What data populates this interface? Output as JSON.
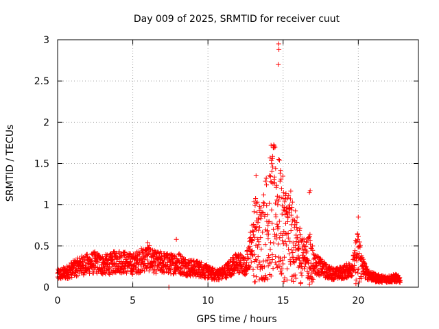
{
  "chart_data": {
    "type": "scatter",
    "title": "Day 009 of 2025, SRMTID for receiver cuut",
    "xlabel": "GPS time / hours",
    "ylabel": "SRMTID / TECUs",
    "xlim": [
      0,
      24
    ],
    "ylim": [
      0,
      3
    ],
    "xticks": [
      0,
      5,
      10,
      15,
      20
    ],
    "yticks": [
      0,
      0.5,
      1,
      1.5,
      2,
      2.5,
      3
    ],
    "ytick_labels": [
      "0",
      "0.5",
      "1",
      "1.5",
      "2",
      "2.5",
      "3"
    ],
    "grid": true,
    "marker": "+",
    "series": [
      {
        "name": "SRMTID",
        "color": "#ff0000",
        "profile": [
          [
            0.0,
            0.15
          ],
          [
            0.5,
            0.17
          ],
          [
            1.0,
            0.22
          ],
          [
            1.5,
            0.26
          ],
          [
            2.0,
            0.28
          ],
          [
            2.5,
            0.3
          ],
          [
            3.0,
            0.27
          ],
          [
            3.5,
            0.28
          ],
          [
            4.0,
            0.32
          ],
          [
            4.5,
            0.3
          ],
          [
            5.0,
            0.28
          ],
          [
            5.5,
            0.32
          ],
          [
            6.0,
            0.36
          ],
          [
            6.5,
            0.3
          ],
          [
            7.0,
            0.3
          ],
          [
            7.5,
            0.28
          ],
          [
            8.0,
            0.3
          ],
          [
            8.5,
            0.25
          ],
          [
            9.0,
            0.23
          ],
          [
            9.5,
            0.22
          ],
          [
            10.0,
            0.18
          ],
          [
            10.5,
            0.15
          ],
          [
            11.0,
            0.17
          ],
          [
            11.5,
            0.24
          ],
          [
            12.0,
            0.3
          ],
          [
            12.5,
            0.24
          ],
          [
            13.0,
            0.6
          ],
          [
            13.5,
            0.55
          ],
          [
            14.0,
            0.8
          ],
          [
            14.5,
            0.95
          ],
          [
            15.0,
            0.7
          ],
          [
            15.5,
            0.62
          ],
          [
            16.0,
            0.42
          ],
          [
            16.5,
            0.4
          ],
          [
            17.0,
            0.3
          ],
          [
            17.5,
            0.24
          ],
          [
            18.0,
            0.18
          ],
          [
            18.5,
            0.16
          ],
          [
            19.0,
            0.18
          ],
          [
            19.5,
            0.22
          ],
          [
            20.0,
            0.38
          ],
          [
            20.5,
            0.18
          ],
          [
            21.0,
            0.12
          ],
          [
            21.5,
            0.1
          ],
          [
            22.0,
            0.1
          ],
          [
            22.5,
            0.11
          ],
          [
            22.8,
            0.09
          ]
        ],
        "extreme_points": [
          [
            14.7,
            2.95
          ],
          [
            14.72,
            2.88
          ],
          [
            14.68,
            2.7
          ],
          [
            14.2,
            1.72
          ],
          [
            14.3,
            1.56
          ],
          [
            14.5,
            1.44
          ],
          [
            14.8,
            1.38
          ],
          [
            13.2,
            1.35
          ],
          [
            16.8,
            1.17
          ],
          [
            16.75,
            1.15
          ],
          [
            15.3,
            1.08
          ],
          [
            20.0,
            0.85
          ],
          [
            7.9,
            0.58
          ],
          [
            6.0,
            0.54
          ],
          [
            7.4,
            0.0
          ]
        ]
      }
    ]
  }
}
